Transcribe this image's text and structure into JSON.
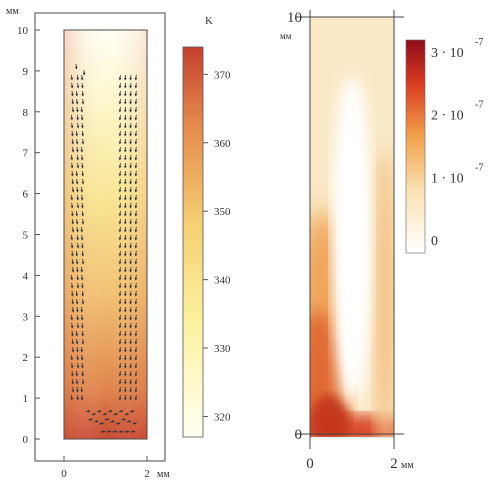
{
  "chart_data": [
    {
      "type": "heatmap",
      "panel": "temperature field with velocity vectors",
      "xunit": "мм",
      "yunit": "мм",
      "xlim": [
        0,
        2
      ],
      "ylim": [
        0,
        10
      ],
      "xticks": [
        "0",
        "2"
      ],
      "yticks": [
        "0",
        "1",
        "2",
        "3",
        "4",
        "5",
        "6",
        "7",
        "8",
        "9",
        "10"
      ],
      "colorbar": {
        "unit": "K",
        "range": [
          317,
          374
        ],
        "ticks": [
          "320",
          "330",
          "340",
          "350",
          "360",
          "370"
        ],
        "colors": [
          "#fffff2",
          "#fcf19c",
          "#f5cf72",
          "#e58a4b",
          "#c4402e"
        ]
      },
      "field": {
        "description_values_K": {
          "bottom": 372,
          "middle": 345,
          "top": 320
        }
      },
      "arrows": true
    },
    {
      "type": "heatmap",
      "panel": "scalar field",
      "xunit": "мм",
      "yunit": "мм",
      "xlim": [
        0,
        2
      ],
      "ylim": [
        0,
        10
      ],
      "xticks": [
        "0",
        "2"
      ],
      "yticks": [
        "0",
        "10"
      ],
      "colorbar": {
        "range": [
          0,
          3.2e-07
        ],
        "ticks": [
          {
            "mantissa": "3 · 10",
            "exp": "-7"
          },
          {
            "mantissa": "2 · 10",
            "exp": "-7"
          },
          {
            "mantissa": "1 · 10",
            "exp": "-7"
          },
          {
            "mantissa": "0",
            "exp": ""
          }
        ],
        "colors": [
          "#ffffff",
          "#fbe1b0",
          "#f2a04a",
          "#d83a20",
          "#8f0c1a"
        ]
      }
    }
  ]
}
